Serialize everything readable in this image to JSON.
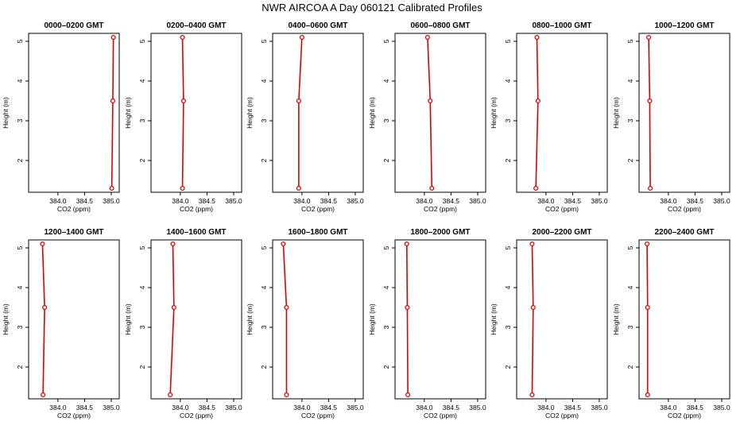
{
  "title": "NWR AIRCOA A  Day 060121  Calibrated Profiles",
  "chart_data": {
    "type": "line",
    "title": "NWR AIRCOA A  Day 060121  Calibrated Profiles",
    "xlabel": "CO2 (ppm)",
    "ylabel": "Height (m)",
    "xlim": [
      383.45,
      385.15
    ],
    "ylim": [
      1.2,
      5.2
    ],
    "xticks": [
      384.0,
      384.5,
      385.0
    ],
    "xtick_labels": [
      "384.0",
      "384.5",
      "385.0"
    ],
    "yticks": [
      2,
      3,
      4,
      5
    ],
    "ytick_labels": [
      "2",
      "3",
      "4",
      "5"
    ],
    "grid": false,
    "line_color": "#dd0000",
    "marker_color": "#dd0000",
    "panels": [
      {
        "title": "0000–0200 GMT",
        "x": [
          385.01,
          385.03,
          385.04
        ],
        "y": [
          1.3,
          3.5,
          5.1
        ]
      },
      {
        "title": "0200–0400 GMT",
        "x": [
          384.04,
          384.06,
          384.04
        ],
        "y": [
          1.3,
          3.5,
          5.1
        ]
      },
      {
        "title": "0400–0600 GMT",
        "x": [
          383.94,
          383.94,
          384.0
        ],
        "y": [
          1.3,
          3.5,
          5.1
        ]
      },
      {
        "title": "0600–0800 GMT",
        "x": [
          384.14,
          384.11,
          384.06
        ],
        "y": [
          1.3,
          3.5,
          5.1
        ]
      },
      {
        "title": "0800–1000 GMT",
        "x": [
          383.81,
          383.85,
          383.83
        ],
        "y": [
          1.3,
          3.5,
          5.1
        ]
      },
      {
        "title": "1000–1200 GMT",
        "x": [
          383.66,
          383.65,
          383.63
        ],
        "y": [
          1.3,
          3.5,
          5.1
        ]
      },
      {
        "title": "1200–1400 GMT",
        "x": [
          383.72,
          383.75,
          383.71
        ],
        "y": [
          1.3,
          3.5,
          5.1
        ]
      },
      {
        "title": "1400–1600 GMT",
        "x": [
          383.81,
          383.88,
          383.86
        ],
        "y": [
          1.3,
          3.5,
          5.1
        ]
      },
      {
        "title": "1600–1800 GMT",
        "x": [
          383.71,
          383.71,
          383.65
        ],
        "y": [
          1.3,
          3.5,
          5.1
        ]
      },
      {
        "title": "1800–2000 GMT",
        "x": [
          383.69,
          383.68,
          383.67
        ],
        "y": [
          1.3,
          3.5,
          5.1
        ]
      },
      {
        "title": "2000–2200 GMT",
        "x": [
          383.74,
          383.76,
          383.74
        ],
        "y": [
          1.3,
          3.5,
          5.1
        ]
      },
      {
        "title": "2200–2400 GMT",
        "x": [
          383.61,
          383.61,
          383.6
        ],
        "y": [
          1.3,
          3.5,
          5.1
        ]
      }
    ]
  }
}
